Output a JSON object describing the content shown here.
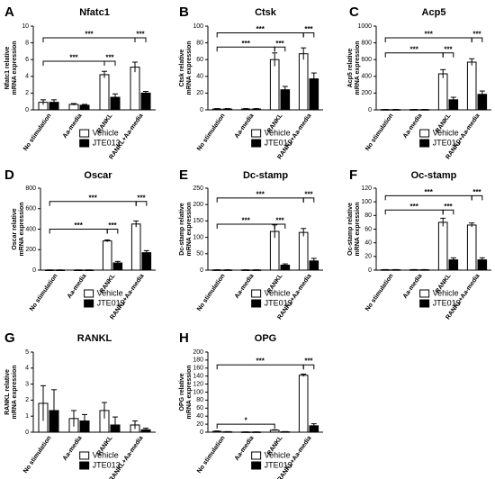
{
  "figure": {
    "legend_labels": [
      "Vehicle",
      "JTE013"
    ],
    "categories": [
      "No stimulation",
      "Aa-media",
      "RANKL",
      "RANKL+Aa-media"
    ]
  },
  "chart_data": [
    {
      "panel": "A",
      "title": "Nfatc1",
      "type": "bar",
      "ylabel": [
        "Nfatc1 relative",
        "mRNA expression"
      ],
      "ylim": [
        0,
        10
      ],
      "yticks": [
        0,
        2,
        4,
        6,
        8,
        10
      ],
      "categories": [
        "No stimulation",
        "Aa-media",
        "RANKL",
        "RANKL+Aa-media"
      ],
      "series": [
        {
          "name": "Vehicle",
          "values": [
            0.9,
            0.65,
            4.2,
            5.1
          ],
          "errors": [
            0.3,
            0.1,
            0.4,
            0.6
          ]
        },
        {
          "name": "JTE013",
          "values": [
            0.9,
            0.55,
            1.5,
            2.0
          ],
          "errors": [
            0.3,
            0.1,
            0.4,
            0.2
          ]
        }
      ],
      "annotations": [
        {
          "label": "***",
          "from": 0,
          "to": 2,
          "pair": "vehicle",
          "level": 5.8
        },
        {
          "label": "***",
          "from": 2,
          "to": 2,
          "pair": "within",
          "level": 5.8
        },
        {
          "label": "***",
          "from": 0,
          "to": 3,
          "pair": "vehicle",
          "level": 8.6
        },
        {
          "label": "***",
          "from": 3,
          "to": 3,
          "pair": "within",
          "level": 8.6
        }
      ]
    },
    {
      "panel": "B",
      "title": "Ctsk",
      "type": "bar",
      "ylabel": [
        "Ctsk relative",
        "mRNA expression"
      ],
      "ylim": [
        0,
        100
      ],
      "yticks": [
        0,
        20,
        40,
        60,
        80,
        100
      ],
      "categories": [
        "No stimulation",
        "Aa-media",
        "RANKL",
        "RANKL+Aa-media"
      ],
      "series": [
        {
          "name": "Vehicle",
          "values": [
            1,
            1,
            60,
            67
          ],
          "errors": [
            0.5,
            0.5,
            8,
            7
          ]
        },
        {
          "name": "JTE013",
          "values": [
            1,
            1,
            24,
            37
          ],
          "errors": [
            0.5,
            0.5,
            4,
            7
          ]
        }
      ],
      "annotations": [
        {
          "label": "***",
          "from": 0,
          "to": 2,
          "pair": "vehicle",
          "level": 75
        },
        {
          "label": "***",
          "from": 2,
          "to": 2,
          "pair": "within",
          "level": 75
        },
        {
          "label": "***",
          "from": 0,
          "to": 3,
          "pair": "vehicle",
          "level": 92
        },
        {
          "label": "***",
          "from": 3,
          "to": 3,
          "pair": "within",
          "level": 92
        }
      ]
    },
    {
      "panel": "C",
      "title": "Acp5",
      "type": "bar",
      "ylabel": [
        "Acp5 relative",
        "mRNA expression"
      ],
      "ylim": [
        0,
        1000
      ],
      "yticks": [
        0,
        200,
        400,
        600,
        800,
        1000
      ],
      "categories": [
        "No stimulation",
        "Aa-media",
        "RANKL",
        "RANKL+Aa-media"
      ],
      "series": [
        {
          "name": "Vehicle",
          "values": [
            3,
            3,
            430,
            570
          ],
          "errors": [
            2,
            2,
            50,
            40
          ]
        },
        {
          "name": "JTE013",
          "values": [
            3,
            3,
            120,
            185
          ],
          "errors": [
            2,
            2,
            30,
            40
          ]
        }
      ],
      "annotations": [
        {
          "label": "***",
          "from": 0,
          "to": 2,
          "pair": "vehicle",
          "level": 680
        },
        {
          "label": "***",
          "from": 2,
          "to": 2,
          "pair": "within",
          "level": 680
        },
        {
          "label": "***",
          "from": 0,
          "to": 3,
          "pair": "vehicle",
          "level": 860
        },
        {
          "label": "***",
          "from": 3,
          "to": 3,
          "pair": "within",
          "level": 860
        }
      ]
    },
    {
      "panel": "D",
      "title": "Oscar",
      "type": "bar",
      "ylabel": [
        "Oscar relative",
        "mRNA expression"
      ],
      "ylim": [
        0,
        800
      ],
      "yticks": [
        0,
        200,
        400,
        600,
        800
      ],
      "categories": [
        "No stimulation",
        "Aa-media",
        "RANKL",
        "RANKL+Aa-media"
      ],
      "series": [
        {
          "name": "Vehicle",
          "values": [
            1,
            1,
            285,
            450
          ],
          "errors": [
            1,
            1,
            10,
            30
          ]
        },
        {
          "name": "JTE013",
          "values": [
            1,
            1,
            70,
            170
          ],
          "errors": [
            1,
            1,
            15,
            20
          ]
        }
      ],
      "annotations": [
        {
          "label": "***",
          "from": 0,
          "to": 2,
          "pair": "vehicle",
          "level": 400
        },
        {
          "label": "***",
          "from": 2,
          "to": 2,
          "pair": "within",
          "level": 400
        },
        {
          "label": "***",
          "from": 0,
          "to": 3,
          "pair": "vehicle",
          "level": 670
        },
        {
          "label": "***",
          "from": 3,
          "to": 3,
          "pair": "within",
          "level": 670
        }
      ]
    },
    {
      "panel": "E",
      "title": "Dc-stamp",
      "type": "bar",
      "ylabel": [
        "Dc-stamp relative",
        "mRNA expression"
      ],
      "ylim": [
        0,
        250
      ],
      "yticks": [
        0,
        50,
        100,
        150,
        200,
        250
      ],
      "categories": [
        "No stimulation",
        "Aa-media",
        "RANKL",
        "RANKL+Aa-media"
      ],
      "series": [
        {
          "name": "Vehicle",
          "values": [
            0.5,
            0.5,
            118,
            115
          ],
          "errors": [
            0.5,
            0.5,
            20,
            12
          ]
        },
        {
          "name": "JTE013",
          "values": [
            0.5,
            0.5,
            15,
            28
          ],
          "errors": [
            0.5,
            0.5,
            4,
            8
          ]
        }
      ],
      "annotations": [
        {
          "label": "***",
          "from": 0,
          "to": 2,
          "pair": "vehicle",
          "level": 140
        },
        {
          "label": "***",
          "from": 2,
          "to": 2,
          "pair": "within",
          "level": 140
        },
        {
          "label": "***",
          "from": 0,
          "to": 3,
          "pair": "vehicle",
          "level": 220
        },
        {
          "label": "***",
          "from": 3,
          "to": 3,
          "pair": "within",
          "level": 220
        }
      ]
    },
    {
      "panel": "F",
      "title": "Oc-stamp",
      "type": "bar",
      "ylabel": [
        "Oc-stamp relative",
        "mRNA expression"
      ],
      "ylim": [
        0,
        120
      ],
      "yticks": [
        0,
        20,
        40,
        60,
        80,
        100,
        120
      ],
      "categories": [
        "No stimulation",
        "Aa-media",
        "RANKL",
        "RANKL+Aa-media"
      ],
      "series": [
        {
          "name": "Vehicle",
          "values": [
            0.5,
            0.5,
            70,
            66
          ],
          "errors": [
            0.3,
            0.3,
            6,
            3
          ]
        },
        {
          "name": "JTE013",
          "values": [
            0.5,
            0.5,
            15,
            15
          ],
          "errors": [
            0.3,
            0.3,
            3,
            3
          ]
        }
      ],
      "annotations": [
        {
          "label": "***",
          "from": 0,
          "to": 2,
          "pair": "vehicle",
          "level": 88
        },
        {
          "label": "***",
          "from": 2,
          "to": 2,
          "pair": "within",
          "level": 88
        },
        {
          "label": "***",
          "from": 0,
          "to": 3,
          "pair": "vehicle",
          "level": 109
        },
        {
          "label": "***",
          "from": 3,
          "to": 3,
          "pair": "within",
          "level": 109
        }
      ]
    },
    {
      "panel": "G",
      "title": "RANKL",
      "type": "bar",
      "ylabel": [
        "RANKL relative",
        "mRNA expression"
      ],
      "ylim": [
        0,
        5
      ],
      "yticks": [
        0,
        1,
        2,
        3,
        4,
        5
      ],
      "categories": [
        "No stimulation",
        "Aa-media",
        "RANKL",
        "RANKL+Aa-media"
      ],
      "series": [
        {
          "name": "Vehicle",
          "values": [
            1.8,
            0.85,
            1.35,
            0.45
          ],
          "errors": [
            1.1,
            0.5,
            0.5,
            0.25
          ]
        },
        {
          "name": "JTE013",
          "values": [
            1.35,
            0.7,
            0.45,
            0.15
          ],
          "errors": [
            1.3,
            0.4,
            0.5,
            0.1
          ]
        }
      ],
      "annotations": []
    },
    {
      "panel": "H",
      "title": "OPG",
      "type": "bar",
      "ylabel": [
        "OPG relative",
        "mRNA expression"
      ],
      "ylim": [
        0,
        200
      ],
      "yticks": [
        0,
        20,
        40,
        60,
        80,
        100,
        120,
        140,
        160,
        180,
        200
      ],
      "categories": [
        "No stimulation",
        "Aa-media",
        "RANKL",
        "RANKL+Aa-media"
      ],
      "series": [
        {
          "name": "Vehicle",
          "values": [
            2,
            0.5,
            5,
            142
          ],
          "errors": [
            1,
            0.3,
            1,
            3
          ]
        },
        {
          "name": "JTE013",
          "values": [
            1,
            0.5,
            1,
            16
          ],
          "errors": [
            0.5,
            0.3,
            0.5,
            5
          ]
        }
      ],
      "annotations": [
        {
          "label": "*",
          "from": 0,
          "to": 2,
          "pair": "vehicle",
          "level": 20
        },
        {
          "label": "***",
          "from": 0,
          "to": 3,
          "pair": "vehicle",
          "level": 168
        },
        {
          "label": "***",
          "from": 3,
          "to": 3,
          "pair": "within",
          "level": 168
        }
      ]
    }
  ]
}
